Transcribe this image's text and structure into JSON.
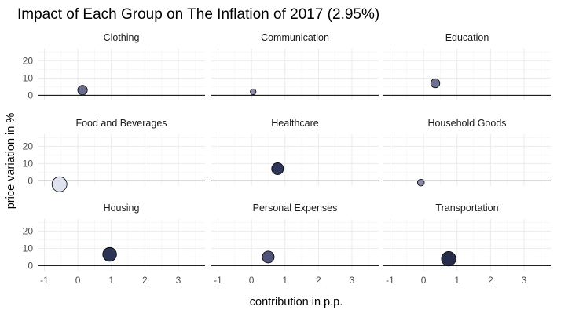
{
  "chart_data": {
    "type": "scatter",
    "title": "Impact of Each Group on The Inflation of 2017 (2.95%)",
    "xlabel": "contribution in p.p.",
    "ylabel": "price variation in %",
    "xlim": [
      -1.2,
      3.8
    ],
    "ylim": [
      -3,
      27
    ],
    "x_ticks": [
      -1,
      0,
      1,
      2,
      3
    ],
    "y_ticks": [
      0,
      10,
      20
    ],
    "grid": true,
    "reference_line": {
      "y": 0
    },
    "facets": [
      {
        "name": "Clothing",
        "x": 0.14,
        "y": 3.0,
        "size": 0.3,
        "fill": "#6a6d8a"
      },
      {
        "name": "Communication",
        "x": 0.05,
        "y": 2.0,
        "size": 0.05,
        "fill": "#8a8ca4"
      },
      {
        "name": "Education",
        "x": 0.35,
        "y": 7.0,
        "size": 0.25,
        "fill": "#6e7190"
      },
      {
        "name": "Food and Beverages",
        "x": -0.55,
        "y": -2.0,
        "size": 1.0,
        "fill": "#dfe3ef"
      },
      {
        "name": "Healthcare",
        "x": 0.78,
        "y": 7.0,
        "size": 0.55,
        "fill": "#2f3557"
      },
      {
        "name": "Household Goods",
        "x": -0.08,
        "y": -1.0,
        "size": 0.1,
        "fill": "#8a8ca4"
      },
      {
        "name": "Housing",
        "x": 0.95,
        "y": 6.5,
        "size": 0.82,
        "fill": "#2d3355"
      },
      {
        "name": "Personal Expenses",
        "x": 0.5,
        "y": 5.0,
        "size": 0.55,
        "fill": "#4f5478"
      },
      {
        "name": "Transportation",
        "x": 0.75,
        "y": 4.0,
        "size": 0.92,
        "fill": "#262c4a"
      }
    ]
  }
}
